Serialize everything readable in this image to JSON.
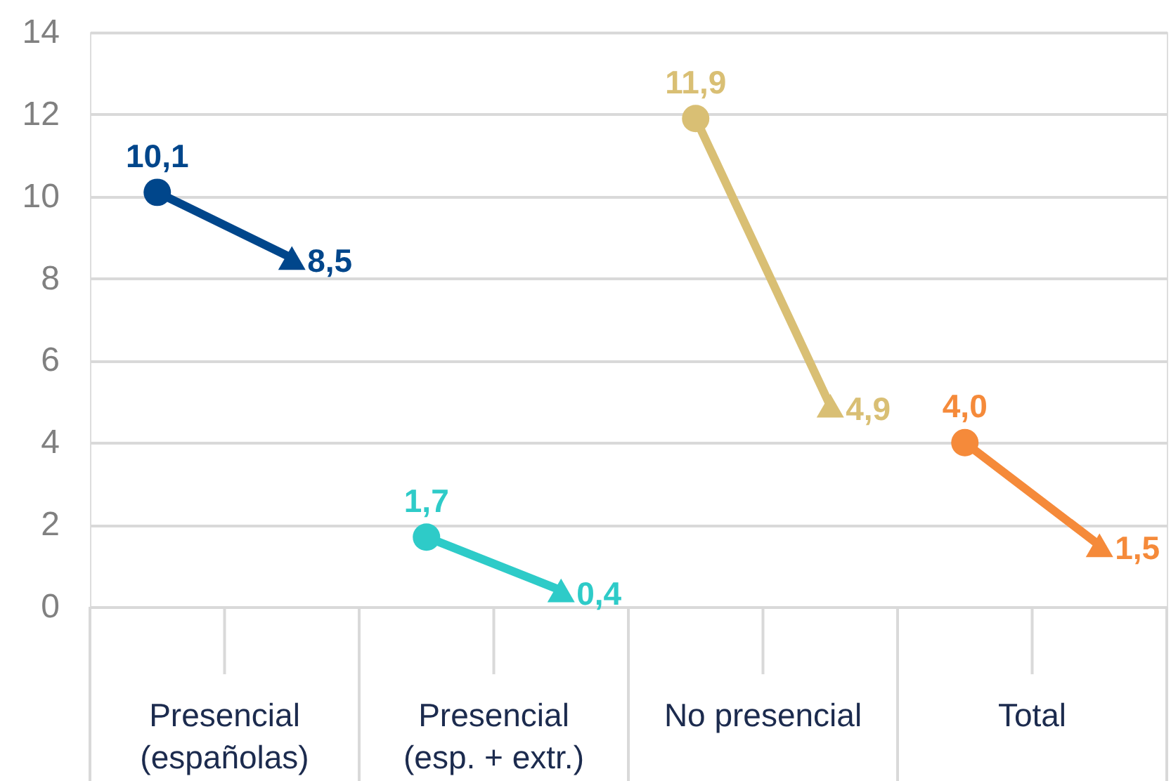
{
  "chart_data": {
    "type": "line",
    "categories": [
      null,
      null,
      null,
      null,
      null,
      null,
      null,
      null
    ],
    "series": [
      {
        "color": "#00468b",
        "values": [
          10.1,
          8.5,
          null,
          null,
          null,
          null,
          null,
          null
        ],
        "value_labels": [
          "10,1",
          "8,5",
          null,
          null,
          null,
          null,
          null,
          null
        ],
        "marker": [
          "circle",
          "triangle",
          null,
          null,
          null,
          null,
          null,
          null
        ]
      },
      {
        "color": "#2ecbc8",
        "values": [
          null,
          null,
          1.7,
          0.4,
          null,
          null,
          null,
          null
        ],
        "value_labels": [
          null,
          null,
          "1,7",
          "0,4",
          null,
          null,
          null,
          null
        ],
        "marker": [
          null,
          null,
          "circle",
          "triangle",
          null,
          null,
          null,
          null
        ]
      },
      {
        "color": "#d9bf74",
        "values": [
          null,
          null,
          null,
          null,
          11.9,
          4.9,
          null,
          null
        ],
        "value_labels": [
          null,
          null,
          null,
          null,
          "11,9",
          "4,9",
          null,
          null
        ],
        "marker": [
          null,
          null,
          null,
          null,
          "circle",
          "triangle",
          null,
          null
        ]
      },
      {
        "color": "#f58a3a",
        "values": [
          null,
          null,
          null,
          null,
          null,
          null,
          4.0,
          1.5
        ],
        "value_labels": [
          null,
          null,
          null,
          null,
          null,
          null,
          "4,0",
          "1,5"
        ],
        "marker": [
          null,
          null,
          null,
          null,
          null,
          null,
          "circle",
          "triangle"
        ]
      }
    ],
    "annotations": [
      "Presencial\n(españolas)",
      "Presencial\n(esp. + extr.)",
      "No presencial",
      "Total"
    ],
    "ylim": [
      0,
      14
    ],
    "yticks": [
      0,
      2,
      4,
      6,
      8,
      10,
      12,
      14
    ],
    "grid": "y"
  }
}
